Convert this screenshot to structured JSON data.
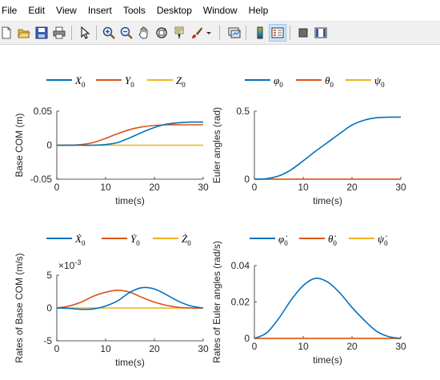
{
  "menu": [
    "File",
    "Edit",
    "View",
    "Insert",
    "Tools",
    "Desktop",
    "Window",
    "Help"
  ],
  "toolbar": {
    "buttons": [
      "new-figure-icon",
      "open-file-icon",
      "save-icon",
      "print-icon",
      "pointer-icon",
      "zoom-in-icon",
      "zoom-out-icon",
      "pan-icon",
      "rotate-3d-icon",
      "data-cursor-icon",
      "brush-icon",
      "brush-dropdown-icon",
      "link-plot-icon",
      "colorbar-icon",
      "legend-icon",
      "hide-plot-tools-icon",
      "show-plot-tools-icon"
    ]
  },
  "colors": {
    "series1": "#0072BD",
    "series2": "#D95319",
    "series3": "#EDB120"
  },
  "chart_data": [
    {
      "type": "line",
      "ylabel": "Base COM (m)",
      "xlabel": "time(s)",
      "xlim": [
        0,
        30
      ],
      "ylim": [
        -0.05,
        0.05
      ],
      "xticks": [
        "0",
        "10",
        "20",
        "30"
      ],
      "yticks": [
        "-0.05",
        "0",
        "0.05"
      ],
      "yticks_values": [
        -0.05,
        0,
        0.05
      ],
      "legend": {
        "placement": "above",
        "entries": [
          {
            "sym": "X",
            "sub": "0"
          },
          {
            "sym": "Y",
            "sub": "0"
          },
          {
            "sym": "Z",
            "sub": "0"
          }
        ]
      },
      "x": [
        0,
        2.5,
        5,
        7.5,
        10,
        12.5,
        15,
        17.5,
        20,
        22.5,
        25,
        27.5,
        30
      ],
      "series": [
        {
          "name": "X0",
          "values": [
            0,
            0,
            0,
            0,
            0.001,
            0.004,
            0.011,
            0.019,
            0.026,
            0.031,
            0.033,
            0.034,
            0.034
          ]
        },
        {
          "name": "Y0",
          "values": [
            0,
            0,
            0.001,
            0.004,
            0.01,
            0.017,
            0.023,
            0.027,
            0.029,
            0.03,
            0.03,
            0.03,
            0.03
          ]
        },
        {
          "name": "Z0",
          "values": [
            0,
            0,
            0,
            0,
            0,
            0,
            0,
            0,
            0,
            0,
            0,
            0,
            0
          ]
        }
      ]
    },
    {
      "type": "line",
      "ylabel": "Euler angles (rad)",
      "xlabel": "time(s)",
      "xlim": [
        0,
        30
      ],
      "ylim": [
        0,
        0.5
      ],
      "xticks": [
        "0",
        "10",
        "20",
        "30"
      ],
      "yticks": [
        "0",
        "0.5"
      ],
      "yticks_values": [
        0,
        0.5
      ],
      "legend": {
        "placement": "above",
        "entries": [
          {
            "sym": "φ",
            "sub": "0"
          },
          {
            "sym": "θ",
            "sub": "0"
          },
          {
            "sym": "ψ",
            "sub": "0"
          }
        ]
      },
      "x": [
        0,
        2.5,
        5,
        7.5,
        10,
        12.5,
        15,
        17.5,
        20,
        22.5,
        25,
        27.5,
        30
      ],
      "series": [
        {
          "name": "phi0",
          "values": [
            0,
            0.004,
            0.024,
            0.069,
            0.135,
            0.205,
            0.27,
            0.336,
            0.398,
            0.434,
            0.452,
            0.456,
            0.456
          ]
        },
        {
          "name": "theta0",
          "values": [
            0,
            0,
            0,
            0,
            0,
            0,
            0,
            0,
            0,
            0,
            0,
            0,
            0
          ]
        },
        {
          "name": "psi0",
          "values": [
            0,
            0,
            0,
            0,
            0,
            0,
            0,
            0,
            0,
            0,
            0,
            0,
            0
          ]
        }
      ]
    },
    {
      "type": "line",
      "ylabel": "Rates of Base COM (m/s)",
      "xlabel": "time(s)",
      "xlim": [
        0,
        30
      ],
      "ylim": [
        -5,
        5
      ],
      "yscale_note": "×10",
      "yscale_exp": "-3",
      "xticks": [
        "0",
        "10",
        "20",
        "30"
      ],
      "yticks": [
        "-5",
        "0",
        "5"
      ],
      "yticks_values": [
        -5,
        0,
        5
      ],
      "legend": {
        "placement": "above",
        "entries": [
          {
            "sym": "Ẋ",
            "sub": "0"
          },
          {
            "sym": "Ẏ",
            "sub": "0"
          },
          {
            "sym": "Ż",
            "sub": "0"
          }
        ]
      },
      "x": [
        0,
        2.5,
        5,
        7.5,
        10,
        12.5,
        15,
        17.5,
        20,
        22.5,
        25,
        27.5,
        30
      ],
      "series": [
        {
          "name": "Xdot0",
          "values": [
            0,
            -0.05,
            -0.2,
            -0.15,
            0.3,
            1.1,
            2.4,
            3.1,
            2.9,
            2.0,
            1.0,
            0.3,
            0
          ]
        },
        {
          "name": "Ydot0",
          "values": [
            0,
            0.3,
            0.9,
            1.8,
            2.4,
            2.7,
            2.4,
            1.6,
            0.9,
            0.4,
            0.1,
            0,
            0
          ]
        },
        {
          "name": "Zdot0",
          "values": [
            0,
            0,
            0,
            0,
            0,
            0,
            0,
            0,
            0,
            0,
            0,
            0,
            0
          ]
        }
      ]
    },
    {
      "type": "line",
      "ylabel": "Rates of Euler angles (rad/s)",
      "xlabel": "time(s)",
      "xlim": [
        0,
        30
      ],
      "ylim": [
        0,
        0.04
      ],
      "xticks": [
        "0",
        "10",
        "20",
        "30"
      ],
      "yticks": [
        "0",
        "0.02",
        "0.04"
      ],
      "yticks_values": [
        0,
        0.02,
        0.04
      ],
      "legend": {
        "placement": "above",
        "entries": [
          {
            "sym": "φ̇",
            "sub": "0"
          },
          {
            "sym": "θ̇",
            "sub": "0"
          },
          {
            "sym": "ψ̇",
            "sub": "0"
          }
        ]
      },
      "x": [
        0,
        2.5,
        5,
        7.5,
        10,
        12.5,
        15,
        17.5,
        20,
        22.5,
        25,
        27.5,
        30
      ],
      "series": [
        {
          "name": "phidot0",
          "values": [
            0,
            0.003,
            0.011,
            0.021,
            0.029,
            0.033,
            0.031,
            0.025,
            0.017,
            0.01,
            0.004,
            0.001,
            0
          ]
        },
        {
          "name": "thetadot0",
          "values": [
            0,
            0,
            0,
            0,
            0,
            0,
            0,
            0,
            0,
            0,
            0,
            0,
            0
          ]
        },
        {
          "name": "psidot0",
          "values": [
            0,
            0,
            0,
            0,
            0,
            0,
            0,
            0,
            0,
            0,
            0,
            0,
            0
          ]
        }
      ]
    }
  ]
}
